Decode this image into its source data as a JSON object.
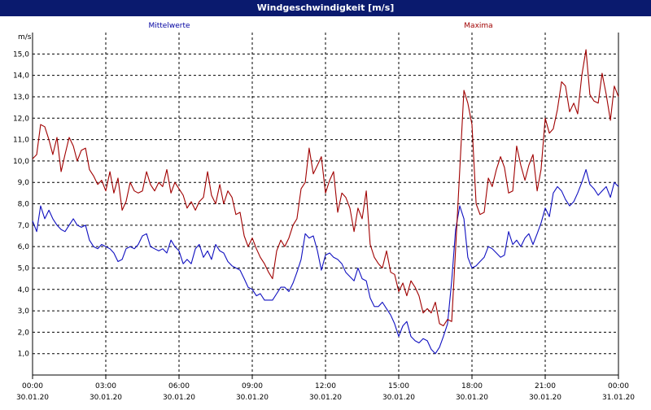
{
  "window": {
    "title": "Windgeschwindigkeit [m/s]"
  },
  "colors": {
    "mean": "#1010c0",
    "max": "#a00000",
    "mean_legend": "#0000a0",
    "max_legend": "#a00000",
    "grid": "#000000",
    "titlebar": "#0a1a6e"
  },
  "chart_data": {
    "type": "line",
    "ylabel": "m/s",
    "ylim": [
      0,
      16
    ],
    "yticks": [
      1,
      2,
      3,
      4,
      5,
      6,
      7,
      8,
      9,
      10,
      11,
      12,
      13,
      14,
      15
    ],
    "ytick_labels": [
      "1,0",
      "2,0",
      "3,0",
      "4,0",
      "5,0",
      "6,0",
      "7,0",
      "8,0",
      "9,0",
      "10,0",
      "11,0",
      "12,0",
      "13,0",
      "14,0",
      "15,0"
    ],
    "xlim_hours": [
      0,
      24
    ],
    "xticks": [
      {
        "time": "00:00",
        "date": "30.01.20"
      },
      {
        "time": "03:00",
        "date": "30.01.20"
      },
      {
        "time": "06:00",
        "date": "30.01.20"
      },
      {
        "time": "09:00",
        "date": "30.01.20"
      },
      {
        "time": "12:00",
        "date": "30.01.20"
      },
      {
        "time": "15:00",
        "date": "30.01.20"
      },
      {
        "time": "18:00",
        "date": "30.01.20"
      },
      {
        "time": "21:00",
        "date": "30.01.20"
      },
      {
        "time": "00:00",
        "date": "31.01.20"
      }
    ],
    "grid": true,
    "legend_position": "top",
    "series": [
      {
        "name": "Mittelwerte",
        "x_hours": [
          0,
          0.17,
          0.33,
          0.5,
          0.67,
          0.83,
          1,
          1.17,
          1.33,
          1.5,
          1.67,
          1.83,
          2,
          2.17,
          2.33,
          2.5,
          2.67,
          2.83,
          3,
          3.17,
          3.33,
          3.5,
          3.67,
          3.83,
          4,
          4.17,
          4.33,
          4.5,
          4.67,
          4.83,
          5,
          5.17,
          5.33,
          5.5,
          5.67,
          5.83,
          6,
          6.17,
          6.33,
          6.5,
          6.67,
          6.83,
          7,
          7.17,
          7.33,
          7.5,
          7.67,
          7.83,
          8,
          8.17,
          8.33,
          8.5,
          8.67,
          8.83,
          9,
          9.17,
          9.33,
          9.5,
          9.67,
          9.83,
          10,
          10.17,
          10.33,
          10.5,
          10.67,
          10.83,
          11,
          11.17,
          11.33,
          11.5,
          11.67,
          11.83,
          12,
          12.17,
          12.33,
          12.5,
          12.67,
          12.83,
          13,
          13.17,
          13.33,
          13.5,
          13.67,
          13.83,
          14,
          14.17,
          14.33,
          14.5,
          14.67,
          14.83,
          15,
          15.17,
          15.33,
          15.5,
          15.67,
          15.83,
          16,
          16.17,
          16.33,
          16.5,
          16.67,
          16.83,
          17,
          17.17,
          17.33,
          17.5,
          17.67,
          17.83,
          18,
          18.17,
          18.33,
          18.5,
          18.67,
          18.83,
          19,
          19.17,
          19.33,
          19.5,
          19.67,
          19.83,
          20,
          20.17,
          20.33,
          20.5,
          20.67,
          20.83,
          21,
          21.17,
          21.33,
          21.5,
          21.67,
          21.83,
          22,
          22.17,
          22.33,
          22.5,
          22.67,
          22.83,
          23,
          23.17,
          23.33,
          23.5,
          23.67,
          23.83,
          24
        ],
        "values": [
          7.2,
          6.7,
          7.9,
          7.3,
          7.7,
          7.3,
          7.0,
          6.8,
          6.7,
          7.0,
          7.3,
          7.0,
          6.9,
          7.0,
          6.3,
          6.0,
          5.9,
          6.1,
          6.0,
          5.9,
          5.7,
          5.3,
          5.4,
          5.9,
          6.0,
          5.9,
          6.1,
          6.5,
          6.6,
          6.0,
          5.9,
          5.8,
          5.9,
          5.7,
          6.3,
          6.0,
          5.8,
          5.2,
          5.4,
          5.2,
          5.9,
          6.1,
          5.5,
          5.8,
          5.4,
          6.1,
          5.8,
          5.7,
          5.3,
          5.1,
          5.0,
          4.9,
          4.5,
          4.1,
          4.0,
          3.7,
          3.8,
          3.5,
          3.5,
          3.5,
          3.8,
          4.1,
          4.1,
          3.9,
          4.3,
          4.8,
          5.4,
          6.6,
          6.4,
          6.5,
          5.8,
          4.9,
          5.6,
          5.7,
          5.5,
          5.4,
          5.2,
          4.8,
          4.6,
          4.4,
          5.0,
          4.5,
          4.4,
          3.6,
          3.2,
          3.2,
          3.4,
          3.1,
          2.8,
          2.4,
          1.8,
          2.3,
          2.5,
          1.8,
          1.6,
          1.5,
          1.7,
          1.6,
          1.2,
          1.0,
          1.3,
          1.8,
          2.4,
          4.4,
          6.8,
          7.9,
          7.3,
          5.5,
          5.0,
          5.1,
          5.3,
          5.5,
          6.0,
          5.9,
          5.7,
          5.5,
          5.6,
          6.7,
          6.1,
          6.3,
          6.0,
          6.4,
          6.6,
          6.1,
          6.6,
          7.1,
          7.8,
          7.4,
          8.5,
          8.8,
          8.6,
          8.2,
          7.9,
          8.1,
          8.5,
          9.0,
          9.6,
          8.9,
          8.7,
          8.4,
          8.6,
          8.8,
          8.3,
          9.0,
          8.8
        ]
      },
      {
        "name": "Maxima",
        "x_hours": [
          0,
          0.17,
          0.33,
          0.5,
          0.67,
          0.83,
          1,
          1.17,
          1.33,
          1.5,
          1.67,
          1.83,
          2,
          2.17,
          2.33,
          2.5,
          2.67,
          2.83,
          3,
          3.17,
          3.33,
          3.5,
          3.67,
          3.83,
          4,
          4.17,
          4.33,
          4.5,
          4.67,
          4.83,
          5,
          5.17,
          5.33,
          5.5,
          5.67,
          5.83,
          6,
          6.17,
          6.33,
          6.5,
          6.67,
          6.83,
          7,
          7.17,
          7.33,
          7.5,
          7.67,
          7.83,
          8,
          8.17,
          8.33,
          8.5,
          8.67,
          8.83,
          9,
          9.17,
          9.33,
          9.5,
          9.67,
          9.83,
          10,
          10.17,
          10.33,
          10.5,
          10.67,
          10.83,
          11,
          11.17,
          11.33,
          11.5,
          11.67,
          11.83,
          12,
          12.17,
          12.33,
          12.5,
          12.67,
          12.83,
          13,
          13.17,
          13.33,
          13.5,
          13.67,
          13.83,
          14,
          14.17,
          14.33,
          14.5,
          14.67,
          14.83,
          15,
          15.17,
          15.33,
          15.5,
          15.67,
          15.83,
          16,
          16.17,
          16.33,
          16.5,
          16.67,
          16.83,
          17,
          17.17,
          17.33,
          17.5,
          17.67,
          17.83,
          18,
          18.17,
          18.33,
          18.5,
          18.67,
          18.83,
          19,
          19.17,
          19.33,
          19.5,
          19.67,
          19.83,
          20,
          20.17,
          20.33,
          20.5,
          20.67,
          20.83,
          21,
          21.17,
          21.33,
          21.5,
          21.67,
          21.83,
          22,
          22.17,
          22.33,
          22.5,
          22.67,
          22.83,
          23,
          23.17,
          23.33,
          23.5,
          23.67,
          23.83,
          24
        ],
        "values": [
          10.1,
          10.3,
          11.7,
          11.6,
          11.0,
          10.3,
          11.1,
          9.5,
          10.3,
          11.1,
          10.7,
          10.0,
          10.5,
          10.6,
          9.6,
          9.3,
          8.9,
          9.1,
          8.6,
          9.5,
          8.5,
          9.2,
          7.7,
          8.1,
          9.0,
          8.6,
          8.5,
          8.6,
          9.5,
          8.9,
          8.6,
          9.0,
          8.8,
          9.6,
          8.5,
          9.0,
          8.7,
          8.4,
          7.8,
          8.1,
          7.7,
          8.1,
          8.3,
          9.5,
          8.4,
          8.0,
          8.9,
          8.0,
          8.6,
          8.3,
          7.5,
          7.6,
          6.5,
          6.0,
          6.4,
          5.9,
          5.5,
          5.2,
          4.8,
          4.5,
          5.8,
          6.3,
          6.0,
          6.4,
          7.0,
          7.3,
          8.7,
          9.0,
          10.6,
          9.4,
          9.8,
          10.2,
          8.5,
          9.1,
          9.5,
          7.6,
          8.5,
          8.3,
          7.8,
          6.7,
          7.8,
          7.3,
          8.6,
          6.1,
          5.5,
          5.2,
          5.0,
          5.8,
          4.8,
          4.7,
          3.9,
          4.3,
          3.7,
          4.4,
          4.1,
          3.7,
          2.9,
          3.1,
          2.9,
          3.4,
          2.4,
          2.3,
          2.6,
          2.5,
          5.9,
          9.6,
          13.3,
          12.7,
          11.7,
          8.0,
          7.5,
          7.6,
          9.2,
          8.8,
          9.6,
          10.2,
          9.7,
          8.5,
          8.6,
          10.7,
          9.8,
          9.1,
          9.8,
          10.3,
          8.6,
          9.6,
          12.0,
          11.3,
          11.5,
          12.4,
          13.7,
          13.5,
          12.3,
          12.7,
          12.2,
          14.0,
          15.2,
          13.1,
          12.8,
          12.7,
          14.1,
          13.1,
          11.9,
          13.5,
          13.0
        ]
      }
    ]
  }
}
